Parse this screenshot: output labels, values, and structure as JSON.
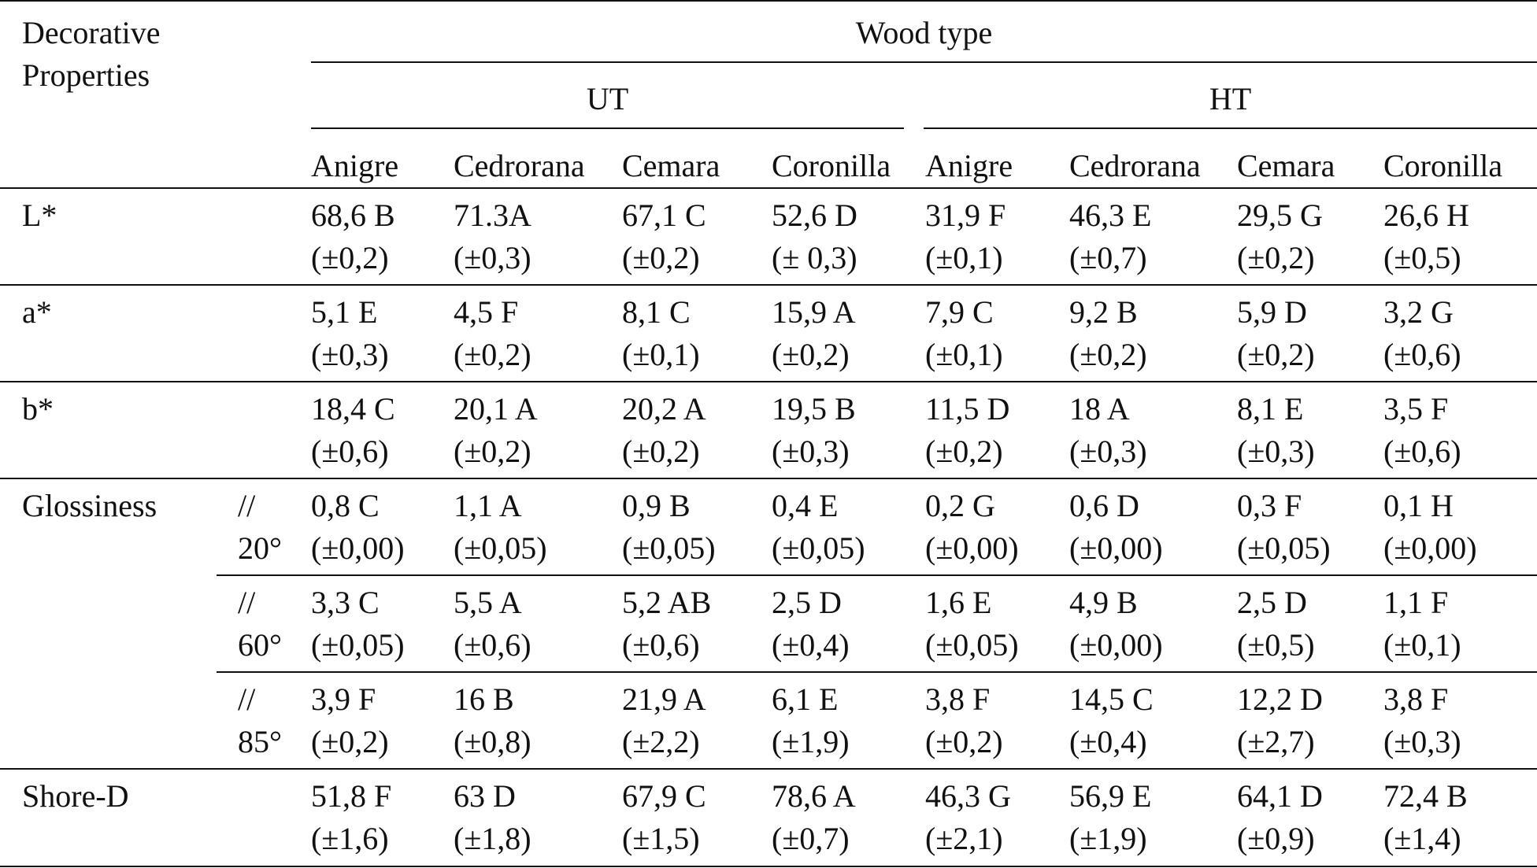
{
  "header": {
    "row_label": [
      "Decorative",
      "Properties"
    ],
    "group_title": "Wood type",
    "treatments": [
      "UT",
      "HT"
    ],
    "species": [
      "Anigre",
      "Cedrorana",
      "Cemara",
      "Coronilla",
      "Anigre",
      "Cedrorana",
      "Cemara",
      "Coronilla"
    ]
  },
  "rows": [
    {
      "property": "L*",
      "angle": [
        "",
        ""
      ],
      "cells": [
        [
          "68,6 B",
          "(±0,2)"
        ],
        [
          "71.3A",
          "(±0,3)"
        ],
        [
          "67,1 C",
          "(±0,2)"
        ],
        [
          "52,6 D",
          "(± 0,3)"
        ],
        [
          "31,9 F",
          "(±0,1)"
        ],
        [
          "46,3 E",
          "(±0,7)"
        ],
        [
          "29,5 G",
          "(±0,2)"
        ],
        [
          "26,6 H",
          "(±0,5)"
        ]
      ]
    },
    {
      "property": "a*",
      "angle": [
        "",
        ""
      ],
      "cells": [
        [
          "5,1 E",
          "(±0,3)"
        ],
        [
          "4,5 F",
          "(±0,2)"
        ],
        [
          "8,1 C",
          "(±0,1)"
        ],
        [
          "15,9 A",
          "(±0,2)"
        ],
        [
          "7,9 C",
          "(±0,1)"
        ],
        [
          "9,2 B",
          "(±0,2)"
        ],
        [
          "5,9 D",
          "(±0,2)"
        ],
        [
          "3,2 G",
          "(±0,6)"
        ]
      ]
    },
    {
      "property": "b*",
      "angle": [
        "",
        ""
      ],
      "cells": [
        [
          "18,4 C",
          "(±0,6)"
        ],
        [
          "20,1 A",
          "(±0,2)"
        ],
        [
          "20,2 A",
          "(±0,2)"
        ],
        [
          "19,5 B",
          "(±0,3)"
        ],
        [
          "11,5 D",
          "(±0,2)"
        ],
        [
          "18 A",
          "(±0,3)"
        ],
        [
          "8,1 E",
          "(±0,3)"
        ],
        [
          "3,5 F",
          "(±0,6)"
        ]
      ]
    },
    {
      "property": "Glossiness",
      "angle": [
        "//",
        "20°"
      ],
      "cells": [
        [
          "0,8 C",
          "(±0,00)"
        ],
        [
          "1,1 A",
          "(±0,05)"
        ],
        [
          "0,9 B",
          "(±0,05)"
        ],
        [
          "0,4 E",
          "(±0,05)"
        ],
        [
          "0,2 G",
          "(±0,00)"
        ],
        [
          "0,6 D",
          "(±0,00)"
        ],
        [
          "0,3 F",
          "(±0,05)"
        ],
        [
          "0,1 H",
          "(±0,00)"
        ]
      ]
    },
    {
      "property": "",
      "angle": [
        "//",
        "60°"
      ],
      "cells": [
        [
          "3,3 C",
          "(±0,05)"
        ],
        [
          "5,5 A",
          "(±0,6)"
        ],
        [
          "5,2 AB",
          "(±0,6)"
        ],
        [
          "2,5 D",
          "(±0,4)"
        ],
        [
          "1,6 E",
          "(±0,05)"
        ],
        [
          "4,9 B",
          "(±0,00)"
        ],
        [
          "2,5 D",
          "(±0,5)"
        ],
        [
          "1,1 F",
          "(±0,1)"
        ]
      ]
    },
    {
      "property": "",
      "angle": [
        "//",
        "85°"
      ],
      "cells": [
        [
          "3,9 F",
          "(±0,2)"
        ],
        [
          "16 B",
          "(±0,8)"
        ],
        [
          "21,9 A",
          "(±2,2)"
        ],
        [
          "6,1 E",
          "(±1,9)"
        ],
        [
          "3,8 F",
          "(±0,2)"
        ],
        [
          "14,5 C",
          "(±0,4)"
        ],
        [
          "12,2 D",
          "(±2,7)"
        ],
        [
          "3,8 F",
          "(±0,3)"
        ]
      ]
    },
    {
      "property": "Shore-D",
      "angle": [
        "",
        ""
      ],
      "cells": [
        [
          "51,8 F",
          "(±1,6)"
        ],
        [
          "63 D",
          "(±1,8)"
        ],
        [
          "67,9 C",
          "(±1,5)"
        ],
        [
          "78,6 A",
          "(±0,7)"
        ],
        [
          "46,3 G",
          "(±2,1)"
        ],
        [
          "56,9 E",
          "(±1,9)"
        ],
        [
          "64,1 D",
          "(±0,9)"
        ],
        [
          "72,4 B",
          "(±1,4)"
        ]
      ]
    }
  ]
}
